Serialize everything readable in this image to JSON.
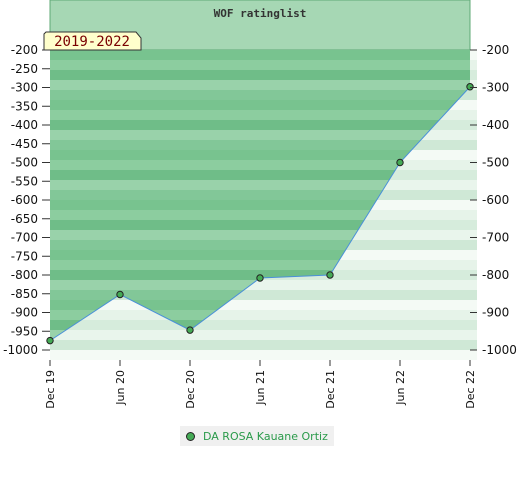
{
  "chart_data": {
    "type": "line",
    "title": "WOF ratinglist",
    "period_badge": "2019-2022",
    "x": [
      "Dec 19",
      "Jun 20",
      "Dec 20",
      "Jun 21",
      "Dec 21",
      "Jun 22",
      "Dec 22"
    ],
    "series": [
      {
        "name": "DA ROSA Kauane Ortiz",
        "values": [
          -975,
          -852,
          -947,
          -808,
          -800,
          -500,
          -298
        ]
      }
    ],
    "ylim": [
      -1000,
      -200
    ],
    "y_ticks_left": [
      -200,
      -250,
      -300,
      -350,
      -400,
      -450,
      -500,
      -550,
      -600,
      -650,
      -700,
      -750,
      -800,
      -850,
      -900,
      -950,
      -1000
    ],
    "y_ticks_right": [
      -200,
      -300,
      -400,
      -500,
      -600,
      -700,
      -800,
      -900,
      -1000
    ],
    "grid": false,
    "legend_position": "bottom-center",
    "colors": {
      "line": "#4a90d9",
      "fill": "#6fbf87",
      "marker": "#44aa55",
      "header": "#a6d7b4"
    }
  }
}
